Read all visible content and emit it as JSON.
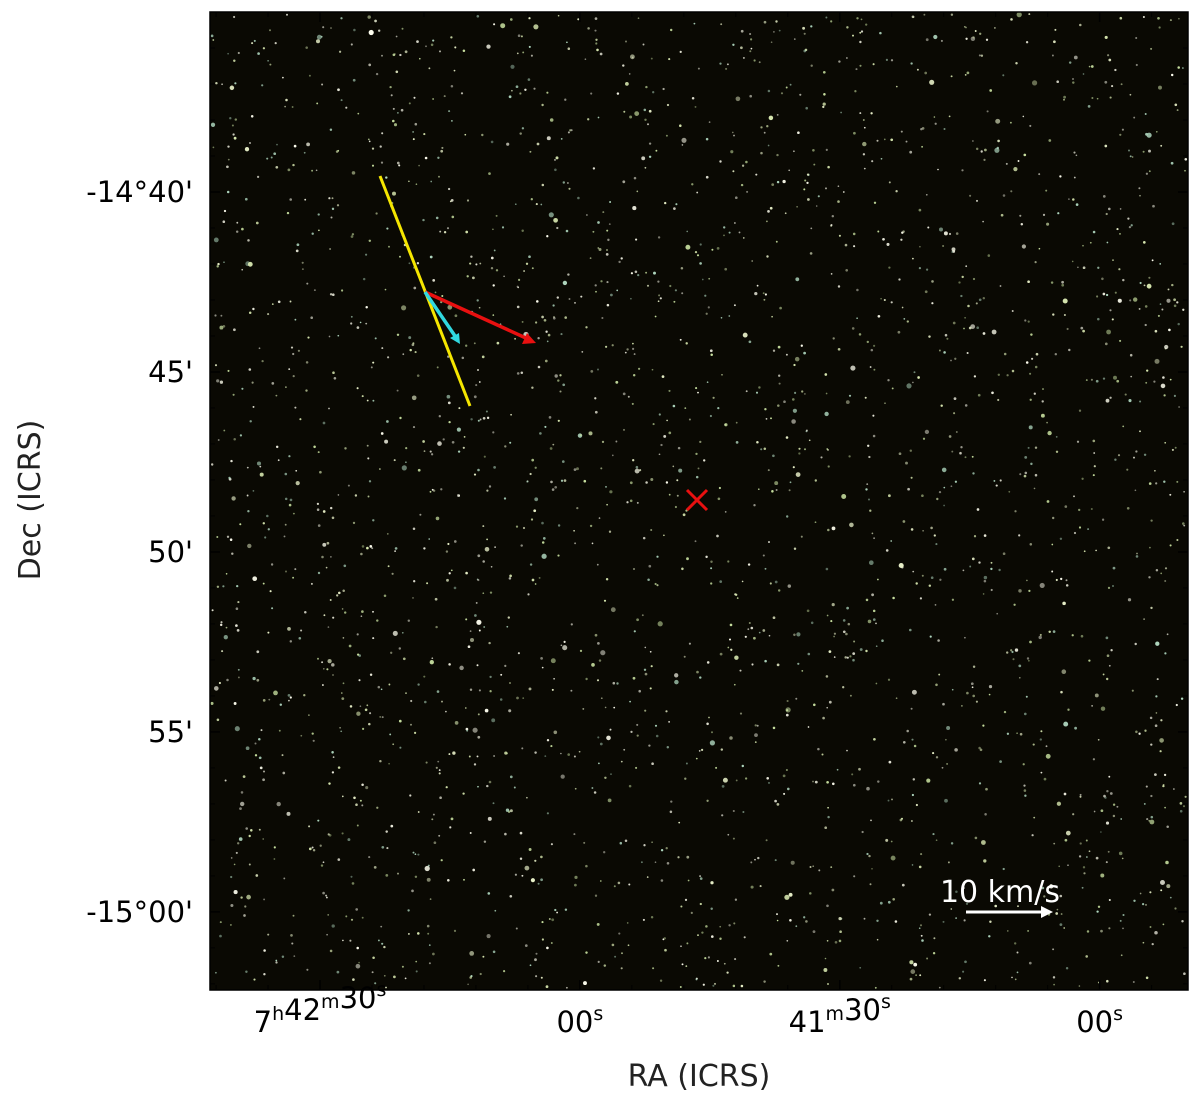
{
  "chart_data": {
    "type": "image",
    "xlabel": "RA (ICRS)",
    "ylabel": "Dec (ICRS)",
    "xlim": [
      27762.7,
      27649.8
    ],
    "xticks": [
      {
        "value": 27750,
        "label": "7h42m30s"
      },
      {
        "value": 27720,
        "label": "00s"
      },
      {
        "value": 27690,
        "label": "41m30s"
      },
      {
        "value": 27660,
        "label": "00s"
      }
    ],
    "ylim": [
      -902.17,
      -875
    ],
    "yticks": [
      {
        "value": -880,
        "label": "-14°40'"
      },
      {
        "value": -885,
        "label": "45'"
      },
      {
        "value": -890,
        "label": "50'"
      },
      {
        "value": -895,
        "label": "55'"
      },
      {
        "value": -900,
        "label": "-15°00'"
      }
    ],
    "scale_bar_label": "10 km/s"
  }
}
